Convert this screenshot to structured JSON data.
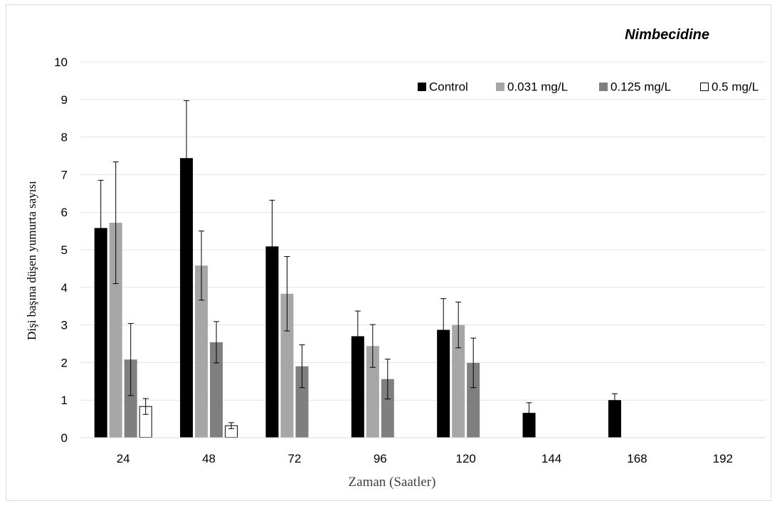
{
  "chart_data": {
    "type": "bar",
    "title": "Nimbecidine",
    "xlabel": "Zaman (Saatler)",
    "ylabel": "Dişi başına düşen yumurta sayısı",
    "categories": [
      "24",
      "48",
      "72",
      "96",
      "120",
      "144",
      "168",
      "192"
    ],
    "ylim": [
      0,
      10
    ],
    "yticks": [
      0,
      1,
      2,
      3,
      4,
      5,
      6,
      7,
      8,
      9,
      10
    ],
    "grid": true,
    "legend_position": "top-right",
    "series": [
      {
        "name": "Control",
        "color": "#000000",
        "values": [
          5.58,
          7.44,
          5.09,
          2.7,
          2.87,
          0.66,
          1.0,
          0
        ],
        "errors": [
          1.27,
          1.53,
          1.23,
          0.67,
          0.83,
          0.27,
          0.17,
          0
        ]
      },
      {
        "name": "0.031 mg/L",
        "color": "#a6a6a6",
        "values": [
          5.72,
          4.58,
          3.83,
          2.44,
          3.0,
          0,
          0,
          0
        ],
        "errors": [
          1.62,
          0.92,
          0.99,
          0.57,
          0.61,
          0,
          0,
          0
        ]
      },
      {
        "name": "0.125 mg/L",
        "color": "#7f7f7f",
        "values": [
          2.08,
          2.54,
          1.9,
          1.56,
          1.99,
          0,
          0,
          0
        ],
        "errors": [
          0.96,
          0.55,
          0.57,
          0.53,
          0.66,
          0,
          0,
          0
        ]
      },
      {
        "name": "0.5 mg/L",
        "color": "#ffffff",
        "stroke": "#000000",
        "values": [
          0.83,
          0.32,
          0,
          0,
          0,
          0,
          0,
          0
        ],
        "errors": [
          0.21,
          0.08,
          0,
          0,
          0,
          0,
          0,
          0
        ]
      }
    ]
  }
}
